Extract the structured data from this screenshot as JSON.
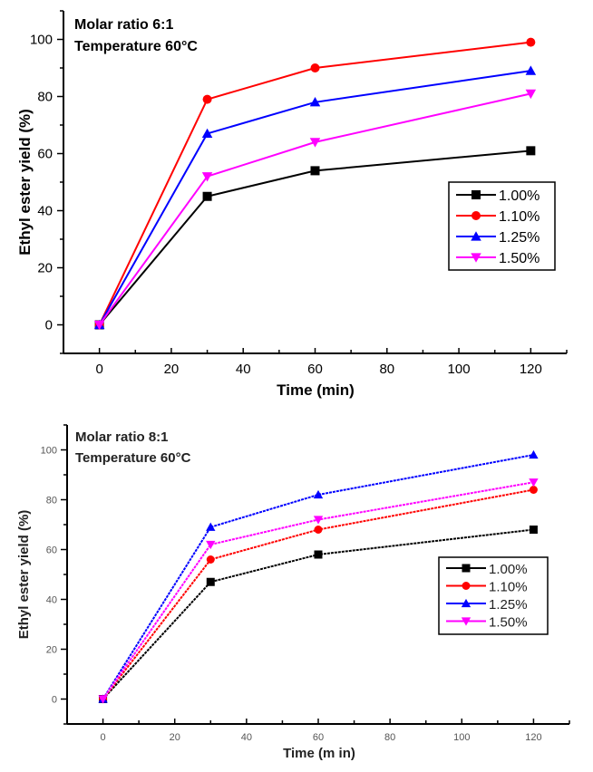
{
  "chart_data": [
    {
      "type": "line",
      "annotations": [
        "Molar ratio 6:1",
        "Temperature 60°C"
      ],
      "xlabel": "Time (min)",
      "ylabel": "Ethyl ester yield (%)",
      "xlim": [
        -10,
        130
      ],
      "ylim": [
        -10,
        110
      ],
      "xticks": [
        0,
        20,
        40,
        60,
        80,
        100,
        120
      ],
      "yticks": [
        0,
        20,
        40,
        60,
        80,
        100
      ],
      "grid": false,
      "legend_position": "center-right",
      "x": [
        0,
        30,
        60,
        120
      ],
      "series": [
        {
          "name": "1.00%",
          "color": "#000000",
          "marker": "square",
          "values": [
            0,
            45,
            54,
            61
          ]
        },
        {
          "name": "1.10%",
          "color": "#ff0000",
          "marker": "circle",
          "values": [
            0,
            79,
            90,
            99
          ]
        },
        {
          "name": "1.25%",
          "color": "#0000ff",
          "marker": "triangle-up",
          "values": [
            0,
            67,
            78,
            89
          ]
        },
        {
          "name": "1.50%",
          "color": "#ff00ff",
          "marker": "triangle-down",
          "values": [
            0,
            52,
            64,
            81
          ]
        }
      ]
    },
    {
      "type": "line",
      "annotations": [
        "Molar ratio 8:1",
        "Temperature 60°C"
      ],
      "xlabel": "Time (m in)",
      "ylabel": "Ethyl ester yield (%)",
      "xlim": [
        -10,
        130
      ],
      "ylim": [
        -10,
        110
      ],
      "xticks": [
        0,
        20,
        40,
        60,
        80,
        100,
        120
      ],
      "yticks": [
        0,
        20,
        40,
        60,
        80,
        100
      ],
      "grid": false,
      "legend_position": "center-right",
      "x": [
        0,
        30,
        60,
        120
      ],
      "series": [
        {
          "name": "1.00%",
          "color": "#000000",
          "marker": "square",
          "values": [
            0,
            47,
            58,
            68
          ]
        },
        {
          "name": "1.10%",
          "color": "#ff0000",
          "marker": "circle",
          "values": [
            0,
            56,
            68,
            84
          ]
        },
        {
          "name": "1.25%",
          "color": "#0000ff",
          "marker": "triangle-up",
          "values": [
            0,
            69,
            82,
            98
          ]
        },
        {
          "name": "1.50%",
          "color": "#ff00ff",
          "marker": "triangle-down",
          "values": [
            0,
            62,
            72,
            87
          ]
        }
      ]
    }
  ]
}
